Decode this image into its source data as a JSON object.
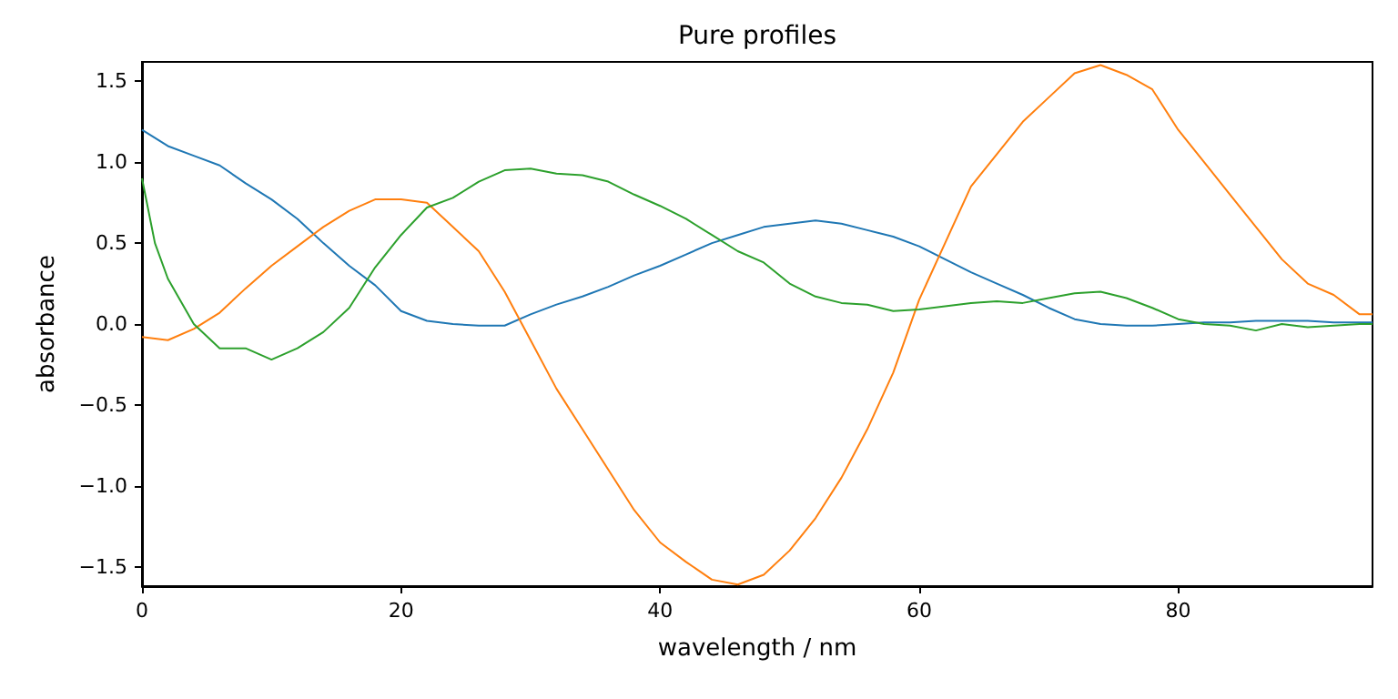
{
  "chart_data": {
    "type": "line",
    "title": "Pure profiles",
    "xlabel": "wavelength / nm",
    "ylabel": "absorbance",
    "xlim": [
      0,
      95
    ],
    "xticks": [
      0,
      20,
      40,
      60,
      80
    ],
    "ylim": [
      -1.62,
      1.62
    ],
    "yticks": [
      {
        "value": -1.5,
        "label": "−1.5"
      },
      {
        "value": -1,
        "label": "−1.0"
      },
      {
        "value": -0.5,
        "label": "−0.5"
      },
      {
        "value": 0,
        "label": "0.0"
      },
      {
        "value": 0.5,
        "label": "0.5"
      },
      {
        "value": 1,
        "label": "1.0"
      },
      {
        "value": 1.5,
        "label": "1.5"
      }
    ],
    "grid": false,
    "marker": "none",
    "line_style": "solid",
    "series": [
      {
        "color": "#1f77b4",
        "x": [
          0,
          2,
          4,
          6,
          8,
          10,
          12,
          14,
          16,
          18,
          20,
          22,
          24,
          26,
          28,
          30,
          32,
          34,
          36,
          38,
          40,
          42,
          44,
          46,
          48,
          50,
          52,
          54,
          56,
          58,
          60,
          62,
          64,
          66,
          68,
          70,
          72,
          74,
          76,
          78,
          80,
          82,
          84,
          86,
          88,
          90,
          92,
          94,
          95
        ],
        "values": [
          1.2,
          1.1,
          1.04,
          0.98,
          0.87,
          0.77,
          0.65,
          0.5,
          0.36,
          0.24,
          0.08,
          0.02,
          0.0,
          -0.01,
          -0.01,
          0.06,
          0.12,
          0.17,
          0.23,
          0.3,
          0.36,
          0.43,
          0.5,
          0.55,
          0.6,
          0.62,
          0.64,
          0.62,
          0.58,
          0.54,
          0.48,
          0.4,
          0.32,
          0.25,
          0.18,
          0.1,
          0.03,
          0.0,
          -0.01,
          -0.01,
          0.0,
          0.01,
          0.01,
          0.02,
          0.02,
          0.02,
          0.01,
          0.01,
          0.01
        ]
      },
      {
        "color": "#ff7f0e",
        "x": [
          0,
          2,
          4,
          6,
          8,
          10,
          12,
          14,
          16,
          18,
          20,
          22,
          24,
          26,
          28,
          30,
          32,
          34,
          36,
          38,
          40,
          42,
          44,
          46,
          48,
          50,
          52,
          54,
          56,
          58,
          60,
          62,
          64,
          66,
          68,
          70,
          72,
          74,
          76,
          78,
          80,
          82,
          84,
          86,
          88,
          90,
          92,
          94,
          95
        ],
        "values": [
          -0.08,
          -0.1,
          -0.03,
          0.07,
          0.22,
          0.36,
          0.48,
          0.6,
          0.7,
          0.77,
          0.77,
          0.75,
          0.6,
          0.45,
          0.2,
          -0.1,
          -0.4,
          -0.65,
          -0.9,
          -1.15,
          -1.35,
          -1.47,
          -1.58,
          -1.61,
          -1.55,
          -1.4,
          -1.2,
          -0.95,
          -0.65,
          -0.3,
          0.15,
          0.5,
          0.85,
          1.05,
          1.25,
          1.4,
          1.55,
          1.6,
          1.54,
          1.45,
          1.2,
          1.0,
          0.8,
          0.6,
          0.4,
          0.25,
          0.18,
          0.06,
          0.06
        ]
      },
      {
        "color": "#2ca02c",
        "x": [
          0,
          1,
          2,
          4,
          6,
          8,
          10,
          12,
          14,
          16,
          18,
          20,
          22,
          24,
          26,
          28,
          30,
          32,
          34,
          36,
          38,
          40,
          42,
          44,
          46,
          48,
          50,
          52,
          54,
          56,
          58,
          60,
          62,
          64,
          66,
          68,
          70,
          72,
          74,
          76,
          78,
          80,
          82,
          84,
          86,
          88,
          90,
          92,
          94,
          95
        ],
        "values": [
          0.9,
          0.5,
          0.28,
          0.0,
          -0.15,
          -0.15,
          -0.22,
          -0.15,
          -0.05,
          0.1,
          0.35,
          0.55,
          0.72,
          0.78,
          0.88,
          0.95,
          0.96,
          0.93,
          0.92,
          0.88,
          0.8,
          0.73,
          0.65,
          0.55,
          0.45,
          0.38,
          0.25,
          0.17,
          0.13,
          0.12,
          0.08,
          0.09,
          0.11,
          0.13,
          0.14,
          0.13,
          0.16,
          0.19,
          0.2,
          0.16,
          0.1,
          0.03,
          0.0,
          -0.01,
          -0.04,
          0.0,
          -0.02,
          -0.01,
          0.0,
          0.0
        ]
      }
    ]
  }
}
